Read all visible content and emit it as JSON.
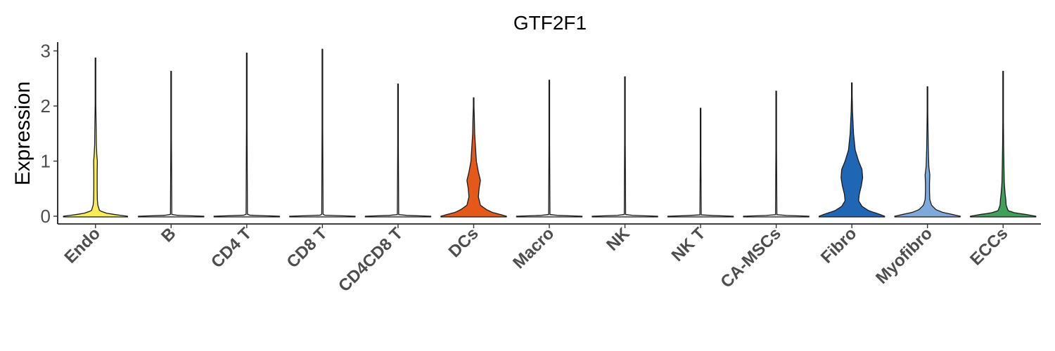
{
  "chart_data": {
    "type": "violin",
    "title": "GTF2F1",
    "xlabel": "",
    "ylabel": "Expression",
    "ylim": [
      0,
      3.15
    ],
    "yticks": [
      0,
      1,
      2,
      3
    ],
    "grid": false,
    "legend": "none",
    "categories": [
      "Endo",
      "B",
      "CD4 T",
      "CD8 T",
      "CD4CD8 T",
      "DCs",
      "Macro",
      "NK",
      "NK T",
      "CA-MSCs",
      "Fibro",
      "Myofibro",
      "ECCs"
    ],
    "colors": [
      "#F7EE55",
      "#E8E8E8",
      "#E8E8E8",
      "#E8E8E8",
      "#E8E8E8",
      "#E4581A",
      "#E8E8E8",
      "#E8E8E8",
      "#E8E8E8",
      "#E8E8E8",
      "#1F66B4",
      "#7FA9D8",
      "#3FA05A"
    ],
    "max_values": [
      2.87,
      2.63,
      2.96,
      3.03,
      2.4,
      2.15,
      2.47,
      2.53,
      1.96,
      2.27,
      2.42,
      2.35,
      2.63
    ],
    "density_profiles": [
      [
        [
          0,
          0.95
        ],
        [
          0.02,
          0.7
        ],
        [
          0.05,
          0.35
        ],
        [
          0.1,
          0.12
        ],
        [
          0.2,
          0.07
        ],
        [
          0.3,
          0.055
        ],
        [
          0.5,
          0.05
        ],
        [
          0.8,
          0.05
        ],
        [
          1.0,
          0.055
        ],
        [
          1.1,
          0.04
        ],
        [
          1.3,
          0.025
        ],
        [
          1.6,
          0.02
        ],
        [
          2.0,
          0.01
        ],
        [
          2.87,
          0
        ]
      ],
      [
        [
          0,
          0.97
        ],
        [
          0.01,
          0.5
        ],
        [
          0.02,
          0.02
        ],
        [
          2.63,
          0
        ]
      ],
      [
        [
          0,
          0.97
        ],
        [
          0.01,
          0.5
        ],
        [
          0.02,
          0.02
        ],
        [
          2.96,
          0
        ]
      ],
      [
        [
          0,
          0.97
        ],
        [
          0.01,
          0.5
        ],
        [
          0.02,
          0.02
        ],
        [
          3.03,
          0
        ]
      ],
      [
        [
          0,
          0.97
        ],
        [
          0.01,
          0.5
        ],
        [
          0.02,
          0.02
        ],
        [
          2.4,
          0
        ]
      ],
      [
        [
          0,
          0.97
        ],
        [
          0.03,
          0.8
        ],
        [
          0.07,
          0.55
        ],
        [
          0.12,
          0.38
        ],
        [
          0.2,
          0.2
        ],
        [
          0.35,
          0.14
        ],
        [
          0.5,
          0.16
        ],
        [
          0.65,
          0.2
        ],
        [
          0.8,
          0.14
        ],
        [
          1.0,
          0.08
        ],
        [
          1.2,
          0.06
        ],
        [
          1.5,
          0.03
        ],
        [
          1.8,
          0.02
        ],
        [
          2.15,
          0
        ]
      ],
      [
        [
          0,
          0.97
        ],
        [
          0.01,
          0.5
        ],
        [
          0.02,
          0.02
        ],
        [
          2.47,
          0
        ]
      ],
      [
        [
          0,
          0.97
        ],
        [
          0.01,
          0.5
        ],
        [
          0.02,
          0.02
        ],
        [
          2.53,
          0
        ]
      ],
      [
        [
          0,
          0.97
        ],
        [
          0.01,
          0.5
        ],
        [
          0.02,
          0.02
        ],
        [
          1.96,
          0
        ]
      ],
      [
        [
          0,
          0.97
        ],
        [
          0.01,
          0.5
        ],
        [
          0.02,
          0.02
        ],
        [
          2.27,
          0
        ]
      ],
      [
        [
          0,
          0.97
        ],
        [
          0.04,
          0.8
        ],
        [
          0.1,
          0.5
        ],
        [
          0.18,
          0.3
        ],
        [
          0.28,
          0.2
        ],
        [
          0.4,
          0.22
        ],
        [
          0.55,
          0.28
        ],
        [
          0.7,
          0.32
        ],
        [
          0.85,
          0.3
        ],
        [
          1.0,
          0.2
        ],
        [
          1.2,
          0.1
        ],
        [
          1.5,
          0.05
        ],
        [
          1.9,
          0.02
        ],
        [
          2.42,
          0
        ]
      ],
      [
        [
          0,
          0.97
        ],
        [
          0.03,
          0.75
        ],
        [
          0.07,
          0.45
        ],
        [
          0.12,
          0.25
        ],
        [
          0.2,
          0.12
        ],
        [
          0.3,
          0.07
        ],
        [
          0.45,
          0.06
        ],
        [
          0.6,
          0.06
        ],
        [
          0.75,
          0.07
        ],
        [
          0.9,
          0.04
        ],
        [
          1.2,
          0.025
        ],
        [
          1.6,
          0.015
        ],
        [
          2.35,
          0
        ]
      ],
      [
        [
          0,
          0.97
        ],
        [
          0.03,
          0.7
        ],
        [
          0.06,
          0.35
        ],
        [
          0.1,
          0.15
        ],
        [
          0.2,
          0.09
        ],
        [
          0.3,
          0.08
        ],
        [
          0.4,
          0.06
        ],
        [
          0.6,
          0.035
        ],
        [
          0.9,
          0.025
        ],
        [
          1.3,
          0.015
        ],
        [
          1.8,
          0.008
        ],
        [
          2.63,
          0
        ]
      ]
    ]
  }
}
